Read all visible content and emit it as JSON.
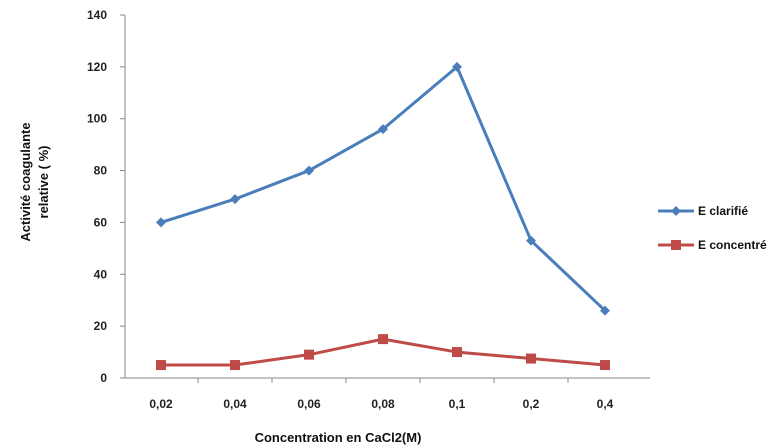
{
  "chart_data": {
    "type": "line",
    "categories": [
      "0,02",
      "0,04",
      "0,06",
      "0,08",
      "0,1",
      "0,2",
      "0,4"
    ],
    "series": [
      {
        "name": "E clarifié",
        "values": [
          60,
          69,
          80,
          96,
          120,
          53,
          26
        ],
        "color": "#4a7ebb",
        "marker": "diamond"
      },
      {
        "name": "E concentré",
        "values": [
          5,
          5,
          9,
          15,
          10,
          7.5,
          5
        ],
        "color": "#be4b48",
        "marker": "square"
      }
    ],
    "xlabel": "Concentration en CaCl2(M)",
    "ylabel_lines": [
      "Activité coagulante",
      "relative ( %)"
    ],
    "ylim": [
      0,
      140
    ],
    "yticks": [
      0,
      20,
      40,
      60,
      80,
      100,
      120,
      140
    ],
    "grid": false,
    "legend": "right"
  }
}
